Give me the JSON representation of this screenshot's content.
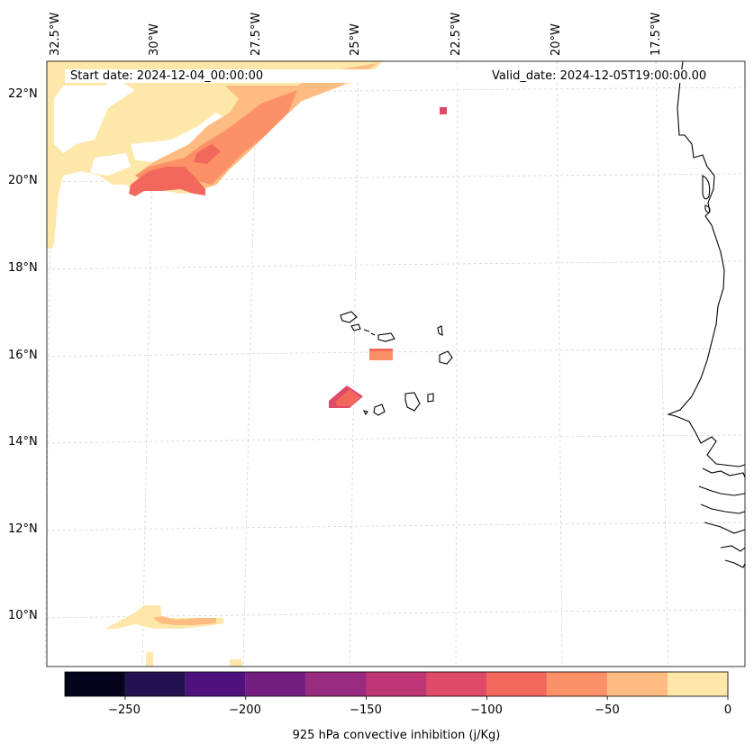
{
  "map": {
    "start_date": "Start date: 2024-12-04_00:00:00",
    "valid_date": "Valid_date: 2024-12-05T19:00:00.00",
    "lon_labels": [
      "32.5°W",
      "30°W",
      "27.5°W",
      "25°W",
      "22.5°W",
      "20°W",
      "17.5°W"
    ],
    "lat_labels": [
      "22°N",
      "20°N",
      "18°N",
      "16°N",
      "14°N",
      "12°N",
      "10°N"
    ],
    "region": "Cabo Verde and West African coast (Senegal / Gambia / Guinea-Bissau)"
  },
  "colorbar": {
    "label": "925 hPa convective inhibition (j/Kg)",
    "tick_labels": [
      "−250",
      "−200",
      "−150",
      "−100",
      "−50",
      "0"
    ],
    "levels": [
      -275,
      -250,
      -225,
      -200,
      -175,
      -150,
      -125,
      -100,
      -75,
      -50,
      -25,
      0
    ],
    "colors": [
      "#05041a",
      "#221150",
      "#4f117b",
      "#741d81",
      "#982b7f",
      "#be3676",
      "#df4a68",
      "#f3685c",
      "#fc9167",
      "#febb82",
      "#fde7a9"
    ]
  }
}
